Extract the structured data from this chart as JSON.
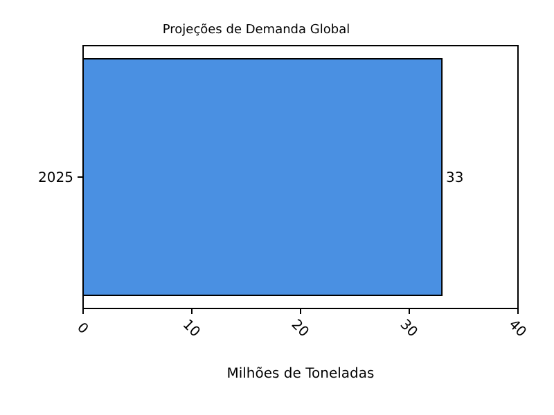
{
  "chart_data": {
    "type": "bar",
    "orientation": "horizontal",
    "title": "Projeções de Demanda Global",
    "xlabel": "Milhões de Toneladas",
    "categories": [
      "2025"
    ],
    "values": [
      33
    ],
    "color": "#4a90e2",
    "xlim": [
      0,
      40
    ],
    "xticks": [
      0,
      10,
      20,
      30,
      40
    ],
    "data_labels": true
  }
}
